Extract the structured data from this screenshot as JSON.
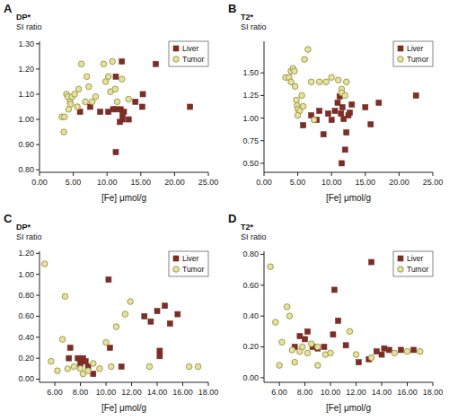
{
  "chart_data": [
    {
      "type": "scatter",
      "title": "A",
      "x_label": "[Fe] μmol/g",
      "y_label": "DP*\nSI ratio",
      "legend": "top-right",
      "xlim": [
        0,
        25
      ],
      "xticks": [
        {
          "value": 0,
          "label": "0.00"
        },
        {
          "value": 5,
          "label": "5.00"
        },
        {
          "value": 10,
          "label": "10.00"
        },
        {
          "value": 15,
          "label": "15.00"
        },
        {
          "value": 20,
          "label": "20.00"
        },
        {
          "value": 25,
          "label": "25.00"
        }
      ],
      "ylim": [
        0.79,
        1.31
      ],
      "yticks": [
        {
          "value": 0.8,
          "label": "0.80"
        },
        {
          "value": 0.9,
          "label": "0.90"
        },
        {
          "value": 1.0,
          "label": "1.00"
        },
        {
          "value": 1.1,
          "label": "1.10"
        },
        {
          "value": 1.2,
          "label": "1.20"
        },
        {
          "value": 1.3,
          "label": "1.30"
        }
      ],
      "series": [
        {
          "name": "Liver",
          "color": "#7b2d26",
          "marker": "square",
          "x": [
            12.2,
            17.2,
            11.3,
            15.3,
            14.2,
            22.3,
            15.2,
            12.5,
            12.0,
            11.3,
            10.9,
            12.3,
            12.3,
            11.9,
            11.3,
            10.2,
            9.0,
            7.5,
            6.0,
            13.2
          ],
          "values": [
            1.23,
            1.22,
            1.17,
            1.1,
            1.07,
            1.05,
            1.05,
            1.03,
            1.04,
            1.04,
            1.04,
            1.02,
            1.0,
            0.99,
            0.87,
            1.03,
            1.03,
            1.05,
            1.03,
            1.0
          ]
        },
        {
          "name": "Tumor",
          "color": "#e6e29a",
          "marker": "circle",
          "x": [
            3.3,
            3.7,
            3.6,
            4.0,
            4.2,
            4.5,
            4.6,
            4.8,
            5.2,
            5.6,
            5.8,
            6.2,
            7.0,
            7.3,
            7.8,
            8.3,
            9.5,
            10.2,
            10.5,
            10.8,
            11.2,
            11.5,
            12.2,
            13.2,
            9.8,
            6.8,
            4.3
          ],
          "values": [
            1.01,
            1.01,
            0.95,
            1.1,
            1.09,
            1.07,
            1.06,
            1.09,
            1.1,
            1.05,
            1.12,
            1.22,
            1.17,
            1.13,
            1.07,
            1.09,
            1.22,
            1.17,
            1.11,
            1.23,
            1.12,
            1.07,
            1.16,
            1.08,
            1.15,
            1.07,
            1.04
          ]
        }
      ]
    },
    {
      "type": "scatter",
      "title": "B",
      "x_label": "[Fe] μmol/g",
      "y_label": "T2*\nSI ratio",
      "legend": "top-right",
      "xlim": [
        0,
        25
      ],
      "xticks": [
        {
          "value": 0,
          "label": "0.00"
        },
        {
          "value": 5,
          "label": "5.00"
        },
        {
          "value": 10,
          "label": "10.00"
        },
        {
          "value": 15,
          "label": "15.00"
        },
        {
          "value": 20,
          "label": "20.00"
        },
        {
          "value": 25,
          "label": "25.00"
        }
      ],
      "ylim": [
        0.4,
        1.85
      ],
      "yticks": [
        {
          "value": 0.5,
          "label": "0.50"
        },
        {
          "value": 0.75,
          "label": "0.75"
        },
        {
          "value": 1.0,
          "label": "1.00"
        },
        {
          "value": 1.25,
          "label": "1.25"
        },
        {
          "value": 1.5,
          "label": "1.50"
        }
      ],
      "series": [
        {
          "name": "Liver",
          "color": "#7b2d26",
          "marker": "square",
          "x": [
            5.8,
            7.0,
            8.2,
            8.8,
            9.5,
            10.0,
            10.5,
            10.9,
            11.2,
            11.4,
            11.5,
            11.8,
            12.0,
            12.2,
            12.5,
            12.7,
            13.0,
            15.0,
            15.8,
            17.0,
            22.5,
            7.8,
            11.6
          ],
          "values": [
            0.92,
            1.03,
            1.08,
            0.82,
            1.05,
            0.98,
            1.08,
            1.17,
            1.24,
            1.05,
            0.5,
            0.99,
            0.65,
            0.84,
            1.03,
            1.06,
            1.15,
            1.12,
            0.93,
            1.17,
            1.25,
            0.98,
            1.12
          ]
        },
        {
          "name": "Tumor",
          "color": "#e6e29a",
          "marker": "circle",
          "x": [
            3.2,
            3.7,
            4.0,
            4.0,
            4.3,
            4.5,
            4.6,
            4.8,
            4.9,
            5.0,
            5.3,
            5.0,
            5.8,
            5.6,
            6.5,
            6.0,
            7.0,
            7.4,
            8.2,
            9.2,
            10.0,
            11.0,
            11.5,
            12.2,
            11.5,
            12.0
          ],
          "values": [
            1.45,
            1.45,
            1.4,
            1.52,
            1.55,
            1.52,
            1.35,
            1.2,
            1.14,
            1.1,
            1.08,
            1.03,
            1.13,
            1.25,
            1.76,
            1.65,
            1.4,
            0.98,
            1.4,
            1.4,
            1.45,
            1.42,
            1.32,
            1.4,
            1.28,
            1.25
          ]
        }
      ]
    },
    {
      "type": "scatter",
      "title": "C",
      "x_label": "[Fe] μmol/g",
      "y_label": "DP*\nSI ratio",
      "legend": "top-right",
      "xlim": [
        4.8,
        18
      ],
      "xticks": [
        {
          "value": 6,
          "label": "6.00"
        },
        {
          "value": 8,
          "label": "8.00"
        },
        {
          "value": 10,
          "label": "10.00"
        },
        {
          "value": 12,
          "label": "12.00"
        },
        {
          "value": 14,
          "label": "14.00"
        },
        {
          "value": 16,
          "label": "16.00"
        },
        {
          "value": 18,
          "label": "18.00"
        }
      ],
      "ylim": [
        -0.03,
        1.22
      ],
      "yticks": [
        {
          "value": 0,
          "label": "0.00"
        },
        {
          "value": 0.2,
          "label": "0.20"
        },
        {
          "value": 0.4,
          "label": "0.40"
        },
        {
          "value": 0.6,
          "label": "0.60"
        },
        {
          "value": 0.8,
          "label": "0.80"
        },
        {
          "value": 1.0,
          "label": "1.00"
        },
        {
          "value": 1.2,
          "label": "1.20"
        }
      ],
      "series": [
        {
          "name": "Liver",
          "color": "#7b2d26",
          "marker": "square",
          "x": [
            7.2,
            7.1,
            7.8,
            8.0,
            8.2,
            8.4,
            8.6,
            10.2,
            10.3,
            13.0,
            13.5,
            14.0,
            14.2,
            14.2,
            14.6,
            15.0,
            15.6,
            11.2,
            9.0
          ],
          "values": [
            0.3,
            0.2,
            0.2,
            0.15,
            0.2,
            0.17,
            0.12,
            0.95,
            0.3,
            0.6,
            0.55,
            0.65,
            0.27,
            0.22,
            0.7,
            0.53,
            0.62,
            0.12,
            0.05
          ]
        },
        {
          "name": "Tumor",
          "color": "#e6e29a",
          "marker": "circle",
          "x": [
            5.2,
            5.7,
            6.2,
            6.6,
            6.8,
            7.0,
            7.5,
            8.0,
            8.6,
            9.0,
            9.5,
            10.0,
            10.4,
            10.8,
            11.5,
            11.9,
            13.4,
            16.5,
            17.2,
            8.2
          ],
          "values": [
            1.1,
            0.17,
            0.08,
            0.38,
            0.79,
            0.1,
            0.12,
            0.1,
            0.08,
            0.15,
            0.1,
            0.35,
            0.12,
            0.5,
            0.62,
            0.74,
            0.12,
            0.12,
            0.12,
            0.05
          ]
        }
      ]
    },
    {
      "type": "scatter",
      "title": "D",
      "x_label": "[Fe] μmol/g",
      "y_label": "T2*\nSI ratio",
      "legend": "top-right",
      "xlim": [
        4.8,
        18
      ],
      "xticks": [
        {
          "value": 6,
          "label": "6.00"
        },
        {
          "value": 8,
          "label": "8.00"
        },
        {
          "value": 10,
          "label": "10.00"
        },
        {
          "value": 12,
          "label": "12.00"
        },
        {
          "value": 14,
          "label": "14.00"
        },
        {
          "value": 16,
          "label": "16.00"
        },
        {
          "value": 18,
          "label": "18.00"
        }
      ],
      "ylim": [
        -0.03,
        0.82
      ],
      "yticks": [
        {
          "value": 0,
          "label": "0.00"
        },
        {
          "value": 0.2,
          "label": "0.20"
        },
        {
          "value": 0.4,
          "label": "0.40"
        },
        {
          "value": 0.6,
          "label": "0.60"
        },
        {
          "value": 0.8,
          "label": "0.80"
        }
      ],
      "series": [
        {
          "name": "Liver",
          "color": "#7b2d26",
          "marker": "square",
          "x": [
            7.2,
            7.6,
            8.0,
            8.2,
            8.6,
            9.5,
            10.2,
            10.3,
            10.6,
            12.2,
            13.2,
            13.0,
            13.6,
            14.0,
            14.2,
            14.6,
            15.5,
            16.5,
            9.0,
            11.2
          ],
          "values": [
            0.2,
            0.27,
            0.25,
            0.3,
            0.2,
            0.2,
            0.28,
            0.57,
            0.37,
            0.1,
            0.75,
            0.12,
            0.17,
            0.15,
            0.19,
            0.18,
            0.18,
            0.18,
            0.19,
            0.21
          ]
        },
        {
          "name": "Tumor",
          "color": "#e6e29a",
          "marker": "circle",
          "x": [
            5.3,
            5.7,
            6.0,
            6.2,
            6.6,
            6.8,
            7.0,
            7.2,
            7.6,
            7.8,
            8.2,
            8.5,
            9.0,
            9.0,
            9.6,
            10.0,
            11.5,
            12.0,
            13.2,
            15.0,
            16.0,
            17.0
          ],
          "values": [
            0.72,
            0.36,
            0.08,
            0.23,
            0.46,
            0.4,
            0.18,
            0.1,
            0.17,
            0.2,
            0.16,
            0.22,
            0.2,
            0.08,
            0.15,
            0.16,
            0.3,
            0.15,
            0.13,
            0.16,
            0.17,
            0.17
          ]
        }
      ]
    }
  ]
}
